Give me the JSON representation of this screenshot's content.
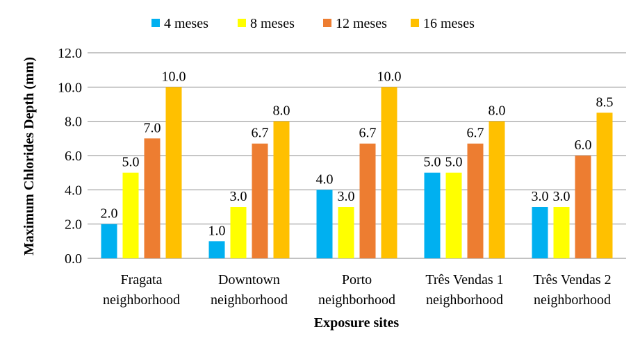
{
  "chart_data": {
    "type": "bar",
    "title": "",
    "xlabel": "Exposure sites",
    "ylabel": "Maximum Chlorides Depth (mm)",
    "ylim": [
      0,
      12
    ],
    "yticks": [
      "0.0",
      "2.0",
      "4.0",
      "6.0",
      "8.0",
      "10.0",
      "12.0"
    ],
    "grid": true,
    "legend_position": "top",
    "categories": [
      [
        "Fragata",
        "neighborhood"
      ],
      [
        "Downtown",
        "neighborhood"
      ],
      [
        "Porto",
        "neighborhood"
      ],
      [
        "Três Vendas 1",
        "neighborhood"
      ],
      [
        "Três Vendas 2",
        "neighborhood"
      ]
    ],
    "series": [
      {
        "name": "4 meses",
        "color": "#00B0F0",
        "values": [
          2.0,
          1.0,
          4.0,
          5.0,
          3.0
        ]
      },
      {
        "name": "8 meses",
        "color": "#FFFF00",
        "values": [
          5.0,
          3.0,
          3.0,
          5.0,
          3.0
        ]
      },
      {
        "name": "12 meses",
        "color": "#ED7D31",
        "values": [
          7.0,
          6.7,
          6.7,
          6.7,
          6.0
        ]
      },
      {
        "name": "16 meses",
        "color": "#FFC000",
        "values": [
          10.0,
          8.0,
          10.0,
          8.0,
          8.5
        ]
      }
    ]
  }
}
